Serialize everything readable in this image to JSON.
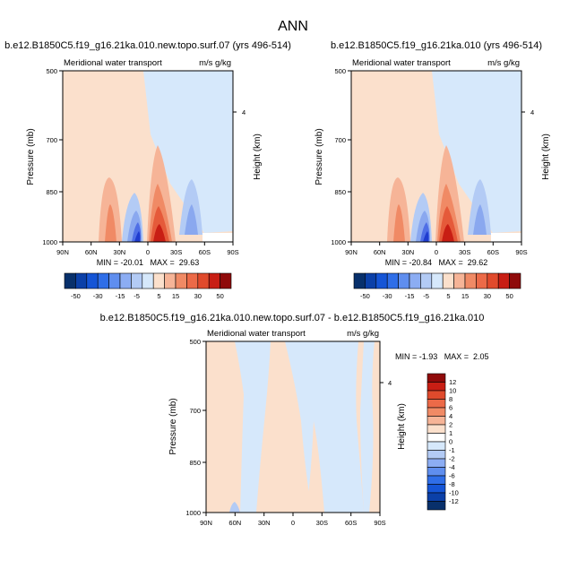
{
  "figure": {
    "title": "ANN"
  },
  "chart_data": [
    {
      "type": "heatmap",
      "title": "b.e12.B1850C5.f19_g16.21ka.010.new.topo.surf.07 (yrs 496-514)",
      "subtitle_left": "Meridional water transport",
      "subtitle_right": "m/s g/kg",
      "ylabel": "Pressure (mb)",
      "ylabel_right": "Height (km)",
      "x_ticks": [
        "90N",
        "60N",
        "30N",
        "0",
        "30S",
        "60S",
        "90S"
      ],
      "y_ticks": [
        "500",
        "700",
        "850",
        "1000"
      ],
      "y_right_ticks": [
        "4"
      ],
      "min_max": "MIN = -20.01   MAX =  29.63",
      "colorbar_labels": [
        "-50",
        "-30",
        "-15",
        "-5",
        "5",
        "15",
        "30",
        "50"
      ]
    },
    {
      "type": "heatmap",
      "title": "b.e12.B1850C5.f19_g16.21ka.010 (yrs 496-514)",
      "subtitle_left": "Meridional water transport",
      "subtitle_right": "m/s g/kg",
      "ylabel": "Pressure (mb)",
      "ylabel_right": "Height (km)",
      "x_ticks": [
        "90N",
        "60N",
        "30N",
        "0",
        "30S",
        "60S",
        "90S"
      ],
      "y_ticks": [
        "500",
        "700",
        "850",
        "1000"
      ],
      "y_right_ticks": [
        "4"
      ],
      "min_max": "MIN = -20.84   MAX =  29.62",
      "colorbar_labels": [
        "-50",
        "-30",
        "-15",
        "-5",
        "5",
        "15",
        "30",
        "50"
      ]
    },
    {
      "type": "heatmap",
      "title": "b.e12.B1850C5.f19_g16.21ka.010.new.topo.surf.07 - b.e12.B1850C5.f19_g16.21ka.010",
      "subtitle_left": "Meridional water transport",
      "subtitle_right": "m/s g/kg",
      "ylabel": "Pressure (mb)",
      "ylabel_right": "Height (km)",
      "x_ticks": [
        "90N",
        "60N",
        "30N",
        "0",
        "30S",
        "60S",
        "90S"
      ],
      "y_ticks": [
        "500",
        "700",
        "850",
        "1000"
      ],
      "y_right_ticks": [
        "4"
      ],
      "min_max": "MIN = -1.93   MAX =  2.05",
      "colorbar_labels": [
        "12",
        "10",
        "8",
        "6",
        "4",
        "2",
        "1",
        "0",
        "-1",
        "-2",
        "-4",
        "-6",
        "-8",
        "-10",
        "-12"
      ]
    }
  ],
  "colors": {
    "pos_light": "#fbe0cc",
    "pos_1": "#f6b497",
    "pos_2": "#f08a65",
    "pos_3": "#e55a3a",
    "pos_4": "#c81e14",
    "neg_light": "#d6e8fb",
    "neg_1": "#b3cbf5",
    "neg_2": "#8aa8ef",
    "neg_3": "#4f6fe6",
    "neg_4": "#1f3ccf",
    "colorbar_top": [
      "#08306b",
      "#0b40a8",
      "#1555d6",
      "#2f6ee8",
      "#5f8eef",
      "#8cadf3",
      "#b3cbf5",
      "#d6e8fb",
      "#fbe0cc",
      "#f6b497",
      "#f08a65",
      "#ec6a48",
      "#e04a2c",
      "#c81e14",
      "#8f0a0a"
    ],
    "colorbar_diff": [
      "#8f0a0a",
      "#c81e14",
      "#e04a2c",
      "#ec6a48",
      "#f08a65",
      "#f6b497",
      "#fbe0cc",
      "#ffffff",
      "#d6e8fb",
      "#b3cbf5",
      "#8cadf3",
      "#5f8eef",
      "#2f6ee8",
      "#1555d6",
      "#0b40a8",
      "#08306b"
    ]
  }
}
